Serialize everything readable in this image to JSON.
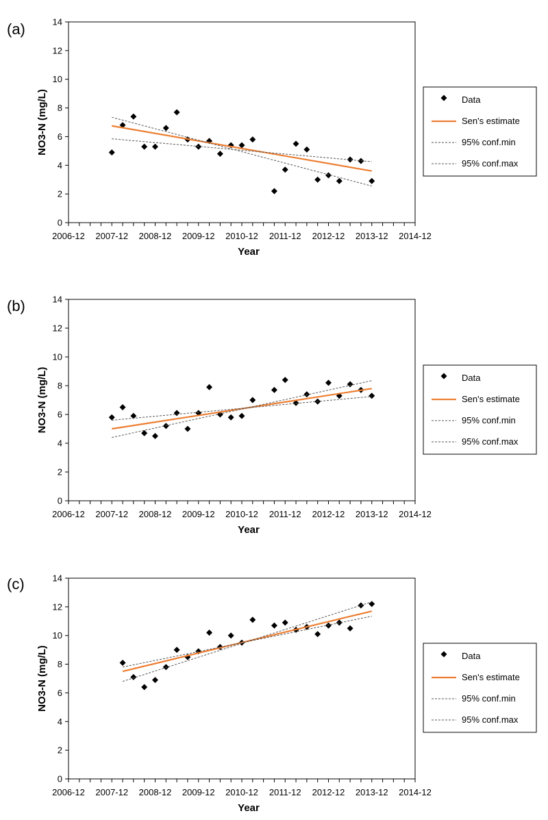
{
  "chart_data": [
    {
      "type": "scatter",
      "panel_label": "(a)",
      "xlabel": "Year",
      "ylabel": "NO3-N (mg/L)",
      "xlim": [
        2006.917,
        2014.917
      ],
      "ylim": [
        0,
        14
      ],
      "yticks": [
        0,
        2,
        4,
        6,
        8,
        10,
        12,
        14
      ],
      "xtick_labels": [
        "2006-12",
        "2007-12",
        "2008-12",
        "2009-12",
        "2010-12",
        "2011-12",
        "2012-12",
        "2013-12",
        "2014-12"
      ],
      "legend": [
        "Data",
        "Sen's estimate",
        "95% conf.min",
        "95% conf.max"
      ],
      "series": [
        {
          "name": "Data",
          "x": [
            2007.917,
            2008.167,
            2008.417,
            2008.667,
            2008.917,
            2009.167,
            2009.417,
            2009.667,
            2009.917,
            2010.167,
            2010.417,
            2010.667,
            2010.917,
            2011.167,
            2011.667,
            2011.917,
            2012.167,
            2012.417,
            2012.667,
            2012.917,
            2013.167,
            2013.417,
            2013.667,
            2013.917
          ],
          "y": [
            4.9,
            6.8,
            7.4,
            5.3,
            5.3,
            6.6,
            7.7,
            5.8,
            5.3,
            5.7,
            4.8,
            5.4,
            5.4,
            5.8,
            2.2,
            3.7,
            5.5,
            5.1,
            3.0,
            3.3,
            2.9,
            4.4,
            4.3,
            2.9
          ]
        },
        {
          "name": "Sen's estimate",
          "x": [
            2007.917,
            2013.917
          ],
          "y": [
            6.75,
            3.6
          ]
        },
        {
          "name": "95% conf.min",
          "x": [
            2007.917,
            2013.917
          ],
          "y": [
            5.85,
            4.25
          ]
        },
        {
          "name": "95% conf.max",
          "x": [
            2007.917,
            2013.917
          ],
          "y": [
            7.35,
            2.55
          ]
        }
      ]
    },
    {
      "type": "scatter",
      "panel_label": "(b)",
      "xlabel": "Year",
      "ylabel": "NO3-N (mg/L)",
      "xlim": [
        2006.917,
        2014.917
      ],
      "ylim": [
        0,
        14
      ],
      "yticks": [
        0,
        2,
        4,
        6,
        8,
        10,
        12,
        14
      ],
      "xtick_labels": [
        "2006-12",
        "2007-12",
        "2008-12",
        "2009-12",
        "2010-12",
        "2011-12",
        "2012-12",
        "2013-12",
        "2014-12"
      ],
      "legend": [
        "Data",
        "Sen's estimate",
        "95% conf.min",
        "95% conf.max"
      ],
      "series": [
        {
          "name": "Data",
          "x": [
            2007.917,
            2008.167,
            2008.417,
            2008.667,
            2008.917,
            2009.167,
            2009.417,
            2009.667,
            2009.917,
            2010.167,
            2010.417,
            2010.667,
            2010.917,
            2011.167,
            2011.667,
            2011.917,
            2012.167,
            2012.417,
            2012.667,
            2012.917,
            2013.167,
            2013.417,
            2013.667,
            2013.917
          ],
          "y": [
            5.8,
            6.5,
            5.9,
            4.7,
            4.5,
            5.2,
            6.1,
            5.0,
            6.1,
            7.9,
            6.0,
            5.8,
            5.9,
            7.0,
            7.7,
            8.4,
            6.8,
            7.4,
            6.9,
            8.2,
            7.3,
            8.1,
            7.7,
            7.3
          ]
        },
        {
          "name": "Sen's estimate",
          "x": [
            2007.917,
            2013.917
          ],
          "y": [
            5.0,
            7.8
          ]
        },
        {
          "name": "95% conf.min",
          "x": [
            2007.917,
            2013.917
          ],
          "y": [
            5.6,
            7.25
          ]
        },
        {
          "name": "95% conf.max",
          "x": [
            2007.917,
            2013.917
          ],
          "y": [
            4.4,
            8.35
          ]
        }
      ]
    },
    {
      "type": "scatter",
      "panel_label": "(c)",
      "xlabel": "Year",
      "ylabel": "NO3-N (mg/L)",
      "xlim": [
        2006.917,
        2014.917
      ],
      "ylim": [
        0,
        14
      ],
      "yticks": [
        0,
        2,
        4,
        6,
        8,
        10,
        12,
        14
      ],
      "xtick_labels": [
        "2006-12",
        "2007-12",
        "2008-12",
        "2009-12",
        "2010-12",
        "2011-12",
        "2012-12",
        "2013-12",
        "2014-12"
      ],
      "legend": [
        "Data",
        "Sen's estimate",
        "95% conf.min",
        "95% conf.max"
      ],
      "series": [
        {
          "name": "Data",
          "x": [
            2008.167,
            2008.417,
            2008.667,
            2008.917,
            2009.167,
            2009.417,
            2009.667,
            2009.917,
            2010.167,
            2010.417,
            2010.667,
            2010.917,
            2011.167,
            2011.667,
            2011.917,
            2012.167,
            2012.417,
            2012.667,
            2012.917,
            2013.167,
            2013.417,
            2013.667,
            2013.917
          ],
          "y": [
            8.1,
            7.1,
            6.4,
            6.9,
            7.8,
            9.0,
            8.5,
            8.9,
            10.2,
            9.2,
            10.0,
            9.5,
            11.1,
            10.7,
            10.9,
            10.4,
            10.6,
            10.1,
            10.7,
            10.9,
            10.5,
            12.1,
            12.2
          ]
        },
        {
          "name": "Sen's estimate",
          "x": [
            2008.167,
            2013.917
          ],
          "y": [
            7.5,
            11.7
          ]
        },
        {
          "name": "95% conf.min",
          "x": [
            2008.167,
            2013.917
          ],
          "y": [
            7.8,
            11.35
          ]
        },
        {
          "name": "95% conf.max",
          "x": [
            2008.167,
            2013.917
          ],
          "y": [
            6.8,
            12.35
          ]
        }
      ]
    }
  ]
}
